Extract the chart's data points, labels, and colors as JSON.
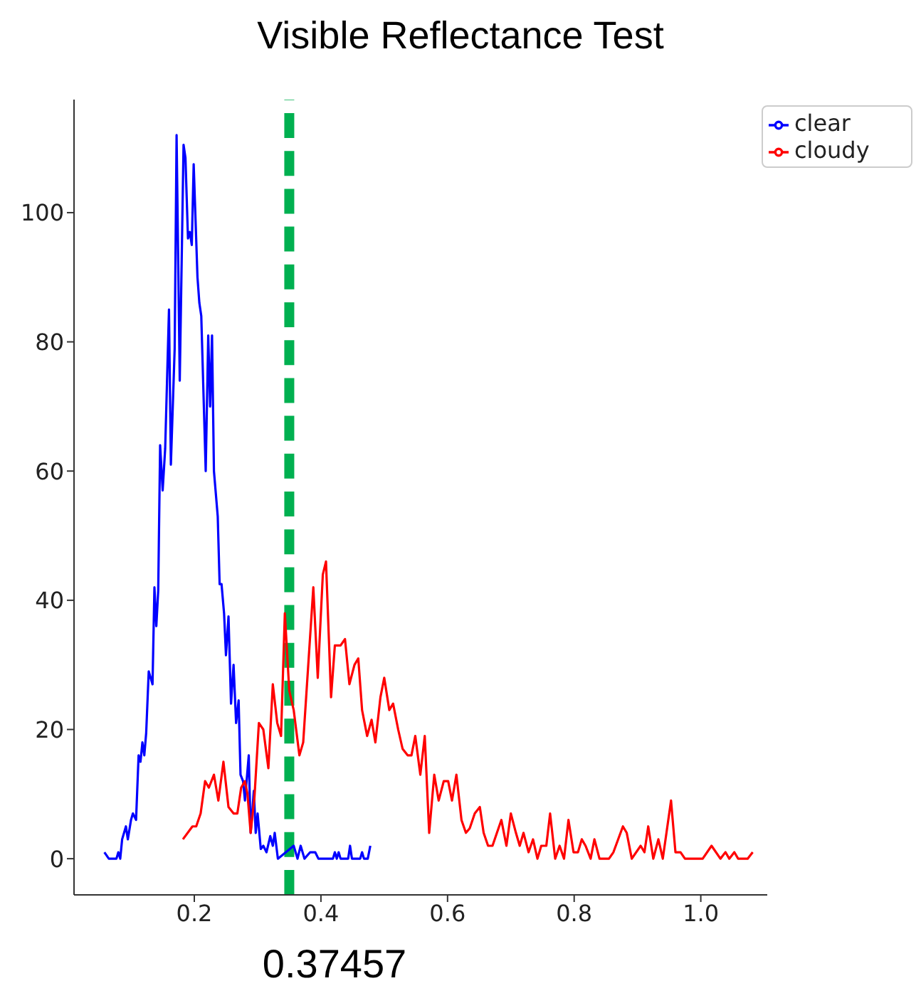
{
  "chart_data": {
    "type": "line",
    "title": "Visible Reflectance Test",
    "xlim": [
      0.01,
      1.105
    ],
    "ylim": [
      -5.6,
      117.5
    ],
    "xticks": [
      {
        "value": 0.2,
        "label": "0.2"
      },
      {
        "value": 0.4,
        "label": "0.4"
      },
      {
        "value": 0.6,
        "label": "0.6"
      },
      {
        "value": 0.8,
        "label": "0.8"
      },
      {
        "value": 1.0,
        "label": "1.0"
      }
    ],
    "yticks": [
      0,
      20,
      40,
      60,
      80,
      100
    ],
    "grid": false,
    "legend": "top right",
    "marker": "none",
    "line_style": "solid",
    "series": [
      {
        "name": "clear",
        "color": "#0000ff",
        "x": [
          0.058,
          0.065,
          0.077,
          0.08,
          0.083,
          0.086,
          0.092,
          0.095,
          0.1,
          0.103,
          0.108,
          0.112,
          0.115,
          0.118,
          0.121,
          0.124,
          0.128,
          0.134,
          0.137,
          0.14,
          0.143,
          0.146,
          0.15,
          0.154,
          0.16,
          0.163,
          0.169,
          0.172,
          0.177,
          0.183,
          0.186,
          0.19,
          0.193,
          0.196,
          0.199,
          0.205,
          0.208,
          0.211,
          0.218,
          0.222,
          0.225,
          0.228,
          0.231,
          0.237,
          0.24,
          0.243,
          0.247,
          0.25,
          0.254,
          0.258,
          0.262,
          0.266,
          0.27,
          0.273,
          0.277,
          0.28,
          0.286,
          0.289,
          0.294,
          0.297,
          0.3,
          0.305,
          0.309,
          0.314,
          0.32,
          0.324,
          0.327,
          0.332,
          0.357,
          0.363,
          0.368,
          0.374,
          0.383,
          0.391,
          0.396,
          0.419,
          0.422,
          0.425,
          0.428,
          0.431,
          0.443,
          0.446,
          0.449,
          0.462,
          0.465,
          0.468,
          0.474,
          0.478
        ],
        "values": [
          1,
          0,
          0,
          1,
          0,
          3,
          5,
          3,
          6,
          7,
          6,
          16,
          15,
          18,
          16,
          19.5,
          29,
          27,
          42,
          36,
          41.5,
          64,
          57,
          63.5,
          85,
          61,
          79,
          112,
          74,
          110.5,
          108.5,
          96,
          97,
          95,
          107.5,
          90,
          86,
          84,
          60,
          81,
          70,
          81,
          60,
          53,
          42.5,
          42.5,
          38,
          31.5,
          37.5,
          24,
          30,
          21,
          24.5,
          13,
          12,
          9,
          16,
          4,
          10.5,
          4,
          7,
          1.5,
          2,
          1,
          3.5,
          2,
          4,
          0,
          2,
          0,
          2,
          0,
          1,
          1,
          0,
          0,
          1,
          0,
          1,
          0,
          0,
          2,
          0,
          0,
          1,
          0,
          0,
          2
        ]
      },
      {
        "name": "cloudy",
        "color": "#ff0000",
        "x": [
          0.182,
          0.197,
          0.203,
          0.21,
          0.217,
          0.223,
          0.231,
          0.238,
          0.246,
          0.254,
          0.262,
          0.268,
          0.274,
          0.28,
          0.284,
          0.289,
          0.295,
          0.302,
          0.309,
          0.317,
          0.324,
          0.331,
          0.337,
          0.343,
          0.35,
          0.357,
          0.366,
          0.372,
          0.388,
          0.395,
          0.403,
          0.408,
          0.416,
          0.422,
          0.431,
          0.438,
          0.445,
          0.453,
          0.459,
          0.465,
          0.473,
          0.48,
          0.486,
          0.494,
          0.5,
          0.508,
          0.514,
          0.522,
          0.529,
          0.537,
          0.543,
          0.549,
          0.557,
          0.564,
          0.571,
          0.579,
          0.586,
          0.594,
          0.601,
          0.607,
          0.614,
          0.622,
          0.629,
          0.635,
          0.643,
          0.651,
          0.657,
          0.664,
          0.671,
          0.678,
          0.685,
          0.693,
          0.7,
          0.708,
          0.714,
          0.72,
          0.728,
          0.735,
          0.742,
          0.748,
          0.756,
          0.762,
          0.77,
          0.777,
          0.784,
          0.791,
          0.799,
          0.806,
          0.812,
          0.818,
          0.826,
          0.832,
          0.84,
          0.855,
          0.862,
          0.877,
          0.883,
          0.891,
          0.905,
          0.911,
          0.917,
          0.925,
          0.933,
          0.94,
          0.953,
          0.96,
          0.968,
          0.975,
          1.003,
          1.017,
          1.031,
          1.039,
          1.045,
          1.053,
          1.059,
          1.074,
          1.082
        ],
        "values": [
          3,
          5,
          5,
          7,
          12,
          11,
          13,
          9,
          15,
          8,
          7,
          7,
          11,
          12,
          10,
          4,
          9.5,
          21,
          20,
          14,
          27,
          21,
          19,
          38,
          26,
          23,
          16,
          18,
          42,
          28,
          44,
          46,
          25,
          33,
          33,
          34,
          27,
          30,
          31,
          23,
          19,
          21.5,
          18,
          25,
          28,
          23,
          24,
          20,
          17,
          16,
          16,
          19,
          13,
          19,
          4,
          13,
          9,
          12,
          12,
          9,
          13,
          6,
          4,
          4.7,
          7,
          8,
          4,
          2,
          2,
          4,
          6,
          2,
          7,
          4,
          2,
          4,
          1,
          3,
          0,
          2,
          2,
          7,
          0,
          2,
          0,
          6,
          1,
          1,
          3,
          2,
          0,
          3,
          0,
          0,
          1,
          5,
          4,
          0,
          2,
          1,
          5,
          0,
          3,
          0,
          9,
          1,
          1,
          0,
          0,
          2,
          0,
          1,
          0,
          1,
          0,
          0,
          1
        ]
      }
    ],
    "ref_lines": [
      {
        "axis": "x",
        "value": 0.35,
        "color": "#00b050",
        "line_style": "dashed"
      }
    ],
    "annotations": [
      "0.37457"
    ]
  }
}
